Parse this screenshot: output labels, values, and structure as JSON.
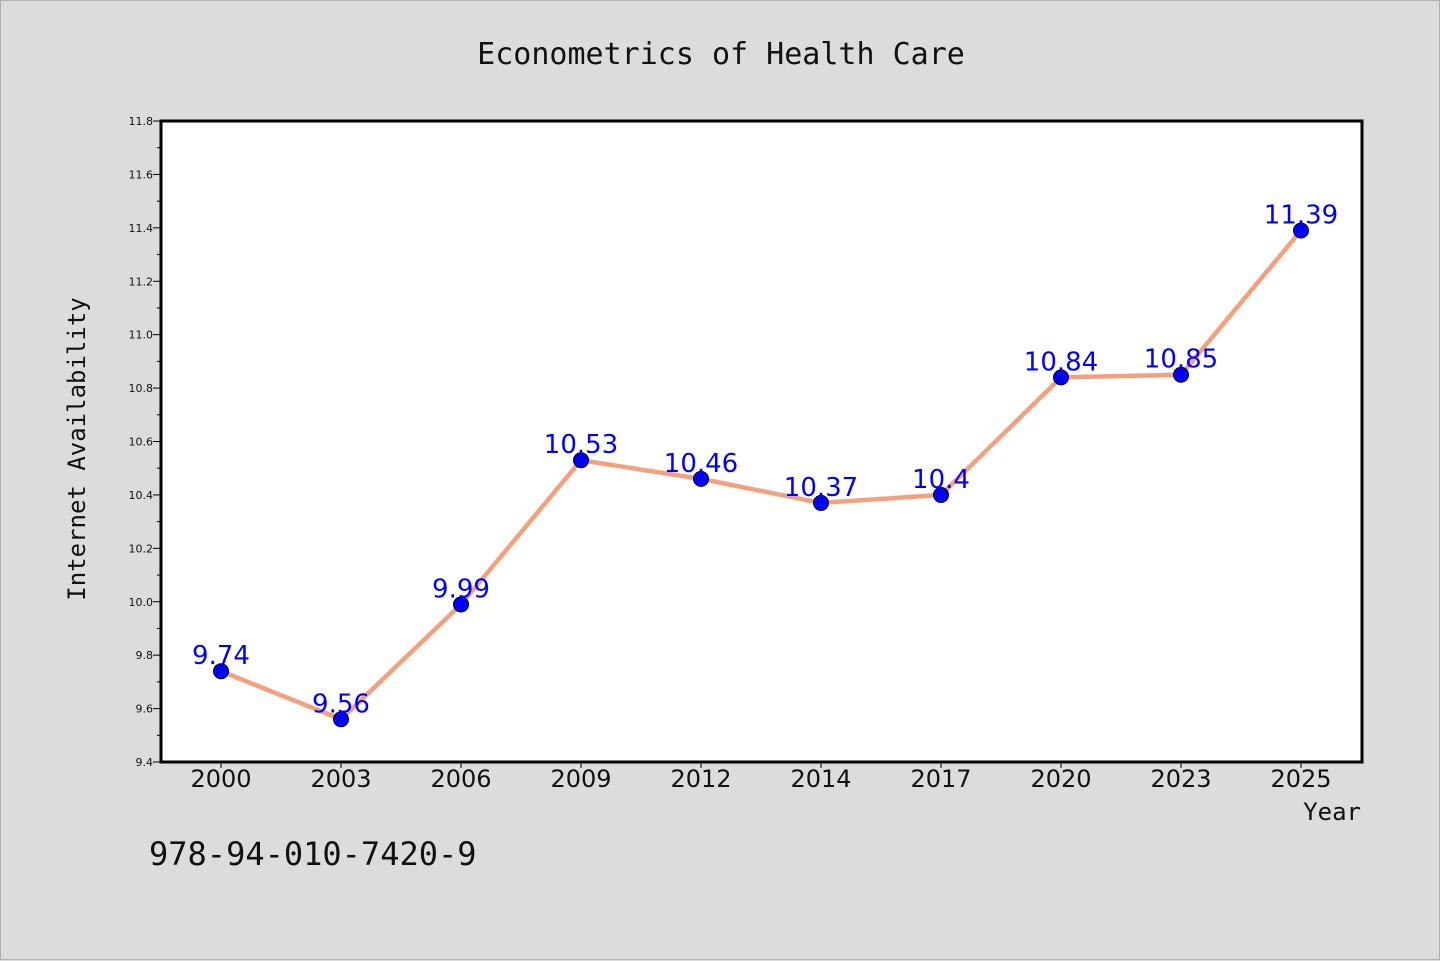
{
  "chart_data": {
    "type": "line",
    "title": "Econometrics of Health Care",
    "xlabel": "Year",
    "ylabel": "Internet Availability",
    "categories": [
      "2000",
      "2003",
      "2006",
      "2009",
      "2012",
      "2014",
      "2017",
      "2020",
      "2023",
      "2025"
    ],
    "series": [
      {
        "values": [
          9.74,
          9.56,
          9.99,
          10.53,
          10.46,
          10.37,
          10.4,
          10.84,
          10.85,
          11.39
        ],
        "labels": [
          "9.74",
          "9.56",
          "9.99",
          "10.53",
          "10.46",
          "10.37",
          "10.4",
          "10.84",
          "10.85",
          "11.39"
        ],
        "line_color": "#f4a07c",
        "marker_color": "#0000ff"
      }
    ],
    "ylim": [
      9.4,
      11.8
    ],
    "yticks": [
      "9.4",
      "9.6",
      "9.8",
      "10.0",
      "10.2",
      "10.4",
      "10.6",
      "10.8",
      "11.0",
      "11.2",
      "11.4",
      "11.6",
      "11.8"
    ],
    "grid": false,
    "legend": "none",
    "label_color": "#0000ff"
  },
  "footer": {
    "isbn": "978-94-010-7420-9"
  }
}
